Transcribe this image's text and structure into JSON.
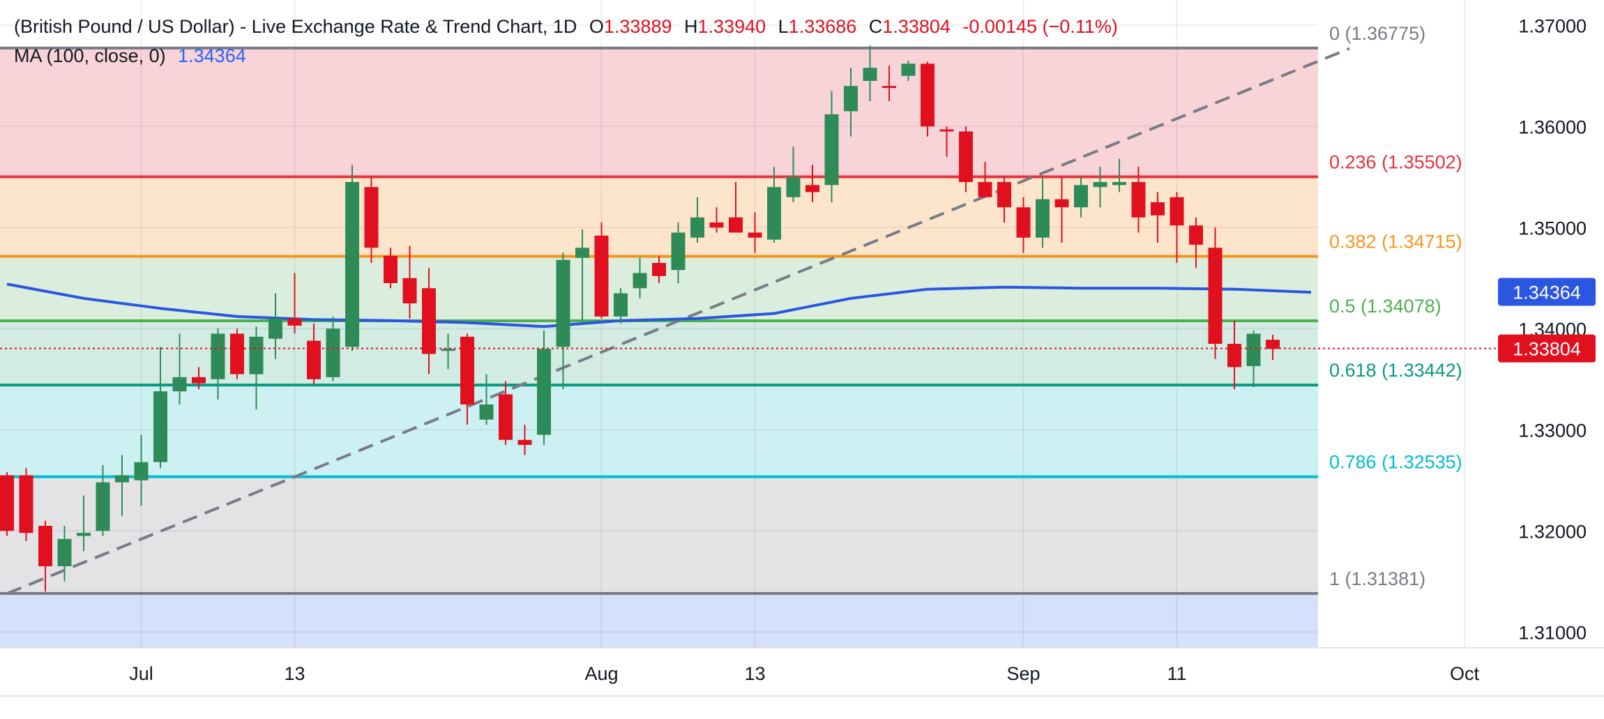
{
  "header": {
    "title": "(British Pound / US Dollar) - Live Exchange Rate & Trend Chart, 1D",
    "open_label": "O",
    "open": "1.33889",
    "high_label": "H",
    "high": "1.33940",
    "low_label": "L",
    "low": "1.33686",
    "close_label": "C",
    "close": "1.33804",
    "change": "-0.00145 (−0.11%)"
  },
  "indicator": {
    "label": "MA (100, close, 0)",
    "value": "1.34364"
  },
  "colors": {
    "up": "#2e8b57",
    "down": "#e0101f",
    "ma": "#2a56e0",
    "fib_0": "#787b86",
    "fib_236": "#e8323c",
    "fib_382": "#f7941d",
    "fib_5": "#4caf50",
    "fib_618": "#089981",
    "fib_786": "#00bcd4",
    "fib_1": "#787b86"
  },
  "chart_data": {
    "type": "candlestick",
    "symbol": "GBP/USD",
    "timeframe": "1D",
    "ylim": [
      1.3085,
      1.3725
    ],
    "y_ticks": [
      "1.37000",
      "1.36000",
      "1.35000",
      "1.34000",
      "1.33000",
      "1.32000",
      "1.31000"
    ],
    "x_ticks": [
      {
        "label": "Jul",
        "i": 7
      },
      {
        "label": "13",
        "i": 15
      },
      {
        "label": "Aug",
        "i": 31
      },
      {
        "label": "13",
        "i": 39
      },
      {
        "label": "Sep",
        "i": 53
      },
      {
        "label": "11",
        "i": 61
      },
      {
        "label": "Oct",
        "i": 76
      }
    ],
    "ohlc": [
      [
        1.3255,
        1.3258,
        1.3195,
        1.32
      ],
      [
        1.3255,
        1.3262,
        1.319,
        1.3198
      ],
      [
        1.3205,
        1.321,
        1.314,
        1.3165
      ],
      [
        1.3165,
        1.3205,
        1.315,
        1.3192
      ],
      [
        1.3195,
        1.3235,
        1.318,
        1.3198
      ],
      [
        1.32,
        1.3265,
        1.3195,
        1.3248
      ],
      [
        1.3248,
        1.3275,
        1.3215,
        1.3255
      ],
      [
        1.325,
        1.3295,
        1.3225,
        1.3268
      ],
      [
        1.3268,
        1.3382,
        1.3262,
        1.3338
      ],
      [
        1.3338,
        1.3395,
        1.3325,
        1.3352
      ],
      [
        1.3352,
        1.3362,
        1.334,
        1.3346
      ],
      [
        1.335,
        1.34,
        1.333,
        1.3395
      ],
      [
        1.3395,
        1.34,
        1.335,
        1.3355
      ],
      [
        1.3355,
        1.3402,
        1.332,
        1.3392
      ],
      [
        1.339,
        1.3435,
        1.337,
        1.341
      ],
      [
        1.341,
        1.3455,
        1.3395,
        1.3403
      ],
      [
        1.3388,
        1.3405,
        1.3345,
        1.335
      ],
      [
        1.3352,
        1.3412,
        1.3348,
        1.34
      ],
      [
        1.3382,
        1.3562,
        1.3378,
        1.3545
      ],
      [
        1.354,
        1.355,
        1.3465,
        1.348
      ],
      [
        1.3472,
        1.348,
        1.344,
        1.3445
      ],
      [
        1.345,
        1.3482,
        1.341,
        1.3425
      ],
      [
        1.344,
        1.346,
        1.3355,
        1.3375
      ],
      [
        1.3378,
        1.3395,
        1.336,
        1.338
      ],
      [
        1.3392,
        1.3395,
        1.3305,
        1.3325
      ],
      [
        1.331,
        1.3355,
        1.3305,
        1.3325
      ],
      [
        1.3335,
        1.3348,
        1.3285,
        1.329
      ],
      [
        1.329,
        1.3305,
        1.3275,
        1.3285
      ],
      [
        1.3295,
        1.3398,
        1.3285,
        1.338
      ],
      [
        1.3382,
        1.3475,
        1.334,
        1.3468
      ],
      [
        1.347,
        1.3498,
        1.3408,
        1.348
      ],
      [
        1.3492,
        1.3505,
        1.341,
        1.3412
      ],
      [
        1.3412,
        1.344,
        1.3405,
        1.3435
      ],
      [
        1.344,
        1.347,
        1.343,
        1.3455
      ],
      [
        1.3465,
        1.3472,
        1.3445,
        1.3452
      ],
      [
        1.3458,
        1.3505,
        1.3445,
        1.3495
      ],
      [
        1.349,
        1.353,
        1.3485,
        1.351
      ],
      [
        1.3505,
        1.352,
        1.3495,
        1.35
      ],
      [
        1.351,
        1.3545,
        1.3495,
        1.3495
      ],
      [
        1.3495,
        1.3515,
        1.3475,
        1.349
      ],
      [
        1.3488,
        1.356,
        1.3485,
        1.354
      ],
      [
        1.353,
        1.358,
        1.3525,
        1.355
      ],
      [
        1.3542,
        1.3562,
        1.3525,
        1.3535
      ],
      [
        1.3542,
        1.3635,
        1.3525,
        1.3612
      ],
      [
        1.3615,
        1.3658,
        1.359,
        1.364
      ],
      [
        1.3645,
        1.368,
        1.3625,
        1.3658
      ],
      [
        1.364,
        1.366,
        1.3625,
        1.3638
      ],
      [
        1.365,
        1.3665,
        1.3645,
        1.3662
      ],
      [
        1.3662,
        1.3664,
        1.359,
        1.36
      ],
      [
        1.3597,
        1.36,
        1.357,
        1.3595
      ],
      [
        1.3595,
        1.36,
        1.3535,
        1.3545
      ],
      [
        1.3545,
        1.3565,
        1.353,
        1.353
      ],
      [
        1.3545,
        1.355,
        1.3505,
        1.352
      ],
      [
        1.352,
        1.353,
        1.3475,
        1.349
      ],
      [
        1.349,
        1.355,
        1.348,
        1.3528
      ],
      [
        1.3528,
        1.355,
        1.3485,
        1.352
      ],
      [
        1.352,
        1.355,
        1.351,
        1.3542
      ],
      [
        1.354,
        1.356,
        1.352,
        1.3545
      ],
      [
        1.3542,
        1.3568,
        1.3535,
        1.3545
      ],
      [
        1.3545,
        1.356,
        1.3495,
        1.351
      ],
      [
        1.3525,
        1.3535,
        1.3485,
        1.3512
      ],
      [
        1.353,
        1.3535,
        1.3465,
        1.3502
      ],
      [
        1.3502,
        1.351,
        1.346,
        1.3483
      ],
      [
        1.348,
        1.35,
        1.337,
        1.3385
      ],
      [
        1.3385,
        1.3408,
        1.334,
        1.3362
      ],
      [
        1.3363,
        1.3398,
        1.3342,
        1.3395
      ],
      [
        1.3389,
        1.3394,
        1.3369,
        1.338
      ]
    ],
    "ma_series": {
      "name": "MA (100, close, 0)",
      "points": [
        [
          0,
          1.3444
        ],
        [
          4,
          1.343
        ],
        [
          8,
          1.342
        ],
        [
          12,
          1.3412
        ],
        [
          16,
          1.3409
        ],
        [
          20,
          1.3408
        ],
        [
          24,
          1.3406
        ],
        [
          28,
          1.3402
        ],
        [
          32,
          1.3408
        ],
        [
          36,
          1.341
        ],
        [
          40,
          1.3415
        ],
        [
          44,
          1.343
        ],
        [
          48,
          1.3439
        ],
        [
          52,
          1.3441
        ],
        [
          56,
          1.344
        ],
        [
          60,
          1.344
        ],
        [
          64,
          1.3439
        ],
        [
          68,
          1.3436
        ]
      ]
    },
    "fib_levels": [
      {
        "ratio": "0",
        "price": "1.36775",
        "label": "0 (1.36775)",
        "color": "#787b86",
        "fill": "#f8d3d8"
      },
      {
        "ratio": "0.236",
        "price": "1.35502",
        "label": "0.236 (1.35502)",
        "color": "#e8323c",
        "fill": "#fde5cc"
      },
      {
        "ratio": "0.382",
        "price": "1.34715",
        "label": "0.382 (1.34715)",
        "color": "#f7941d",
        "fill": "#dbeedd"
      },
      {
        "ratio": "0.5",
        "price": "1.34078",
        "label": "0.5 (1.34078)",
        "color": "#4caf50",
        "fill": "#d2ebe3"
      },
      {
        "ratio": "0.618",
        "price": "1.33442",
        "label": "0.618 (1.33442)",
        "color": "#089981",
        "fill": "#cdf0f3"
      },
      {
        "ratio": "0.786",
        "price": "1.32535",
        "label": "0.786 (1.32535)",
        "color": "#00bcd4",
        "fill": "#e3e3e6"
      },
      {
        "ratio": "1",
        "price": "1.31381",
        "label": "1 (1.31381)",
        "color": "#787b86",
        "fill": "#d5e0fb"
      }
    ],
    "trendline": {
      "from": [
        0,
        1.3138
      ],
      "to": [
        70,
        1.3677
      ]
    },
    "price_badges": [
      {
        "value": "1.34364",
        "price": 1.34364,
        "color": "#2a56e0"
      },
      {
        "value": "1.33804",
        "price": 1.33804,
        "color": "#e0101f"
      }
    ],
    "last_price": 1.33804
  }
}
